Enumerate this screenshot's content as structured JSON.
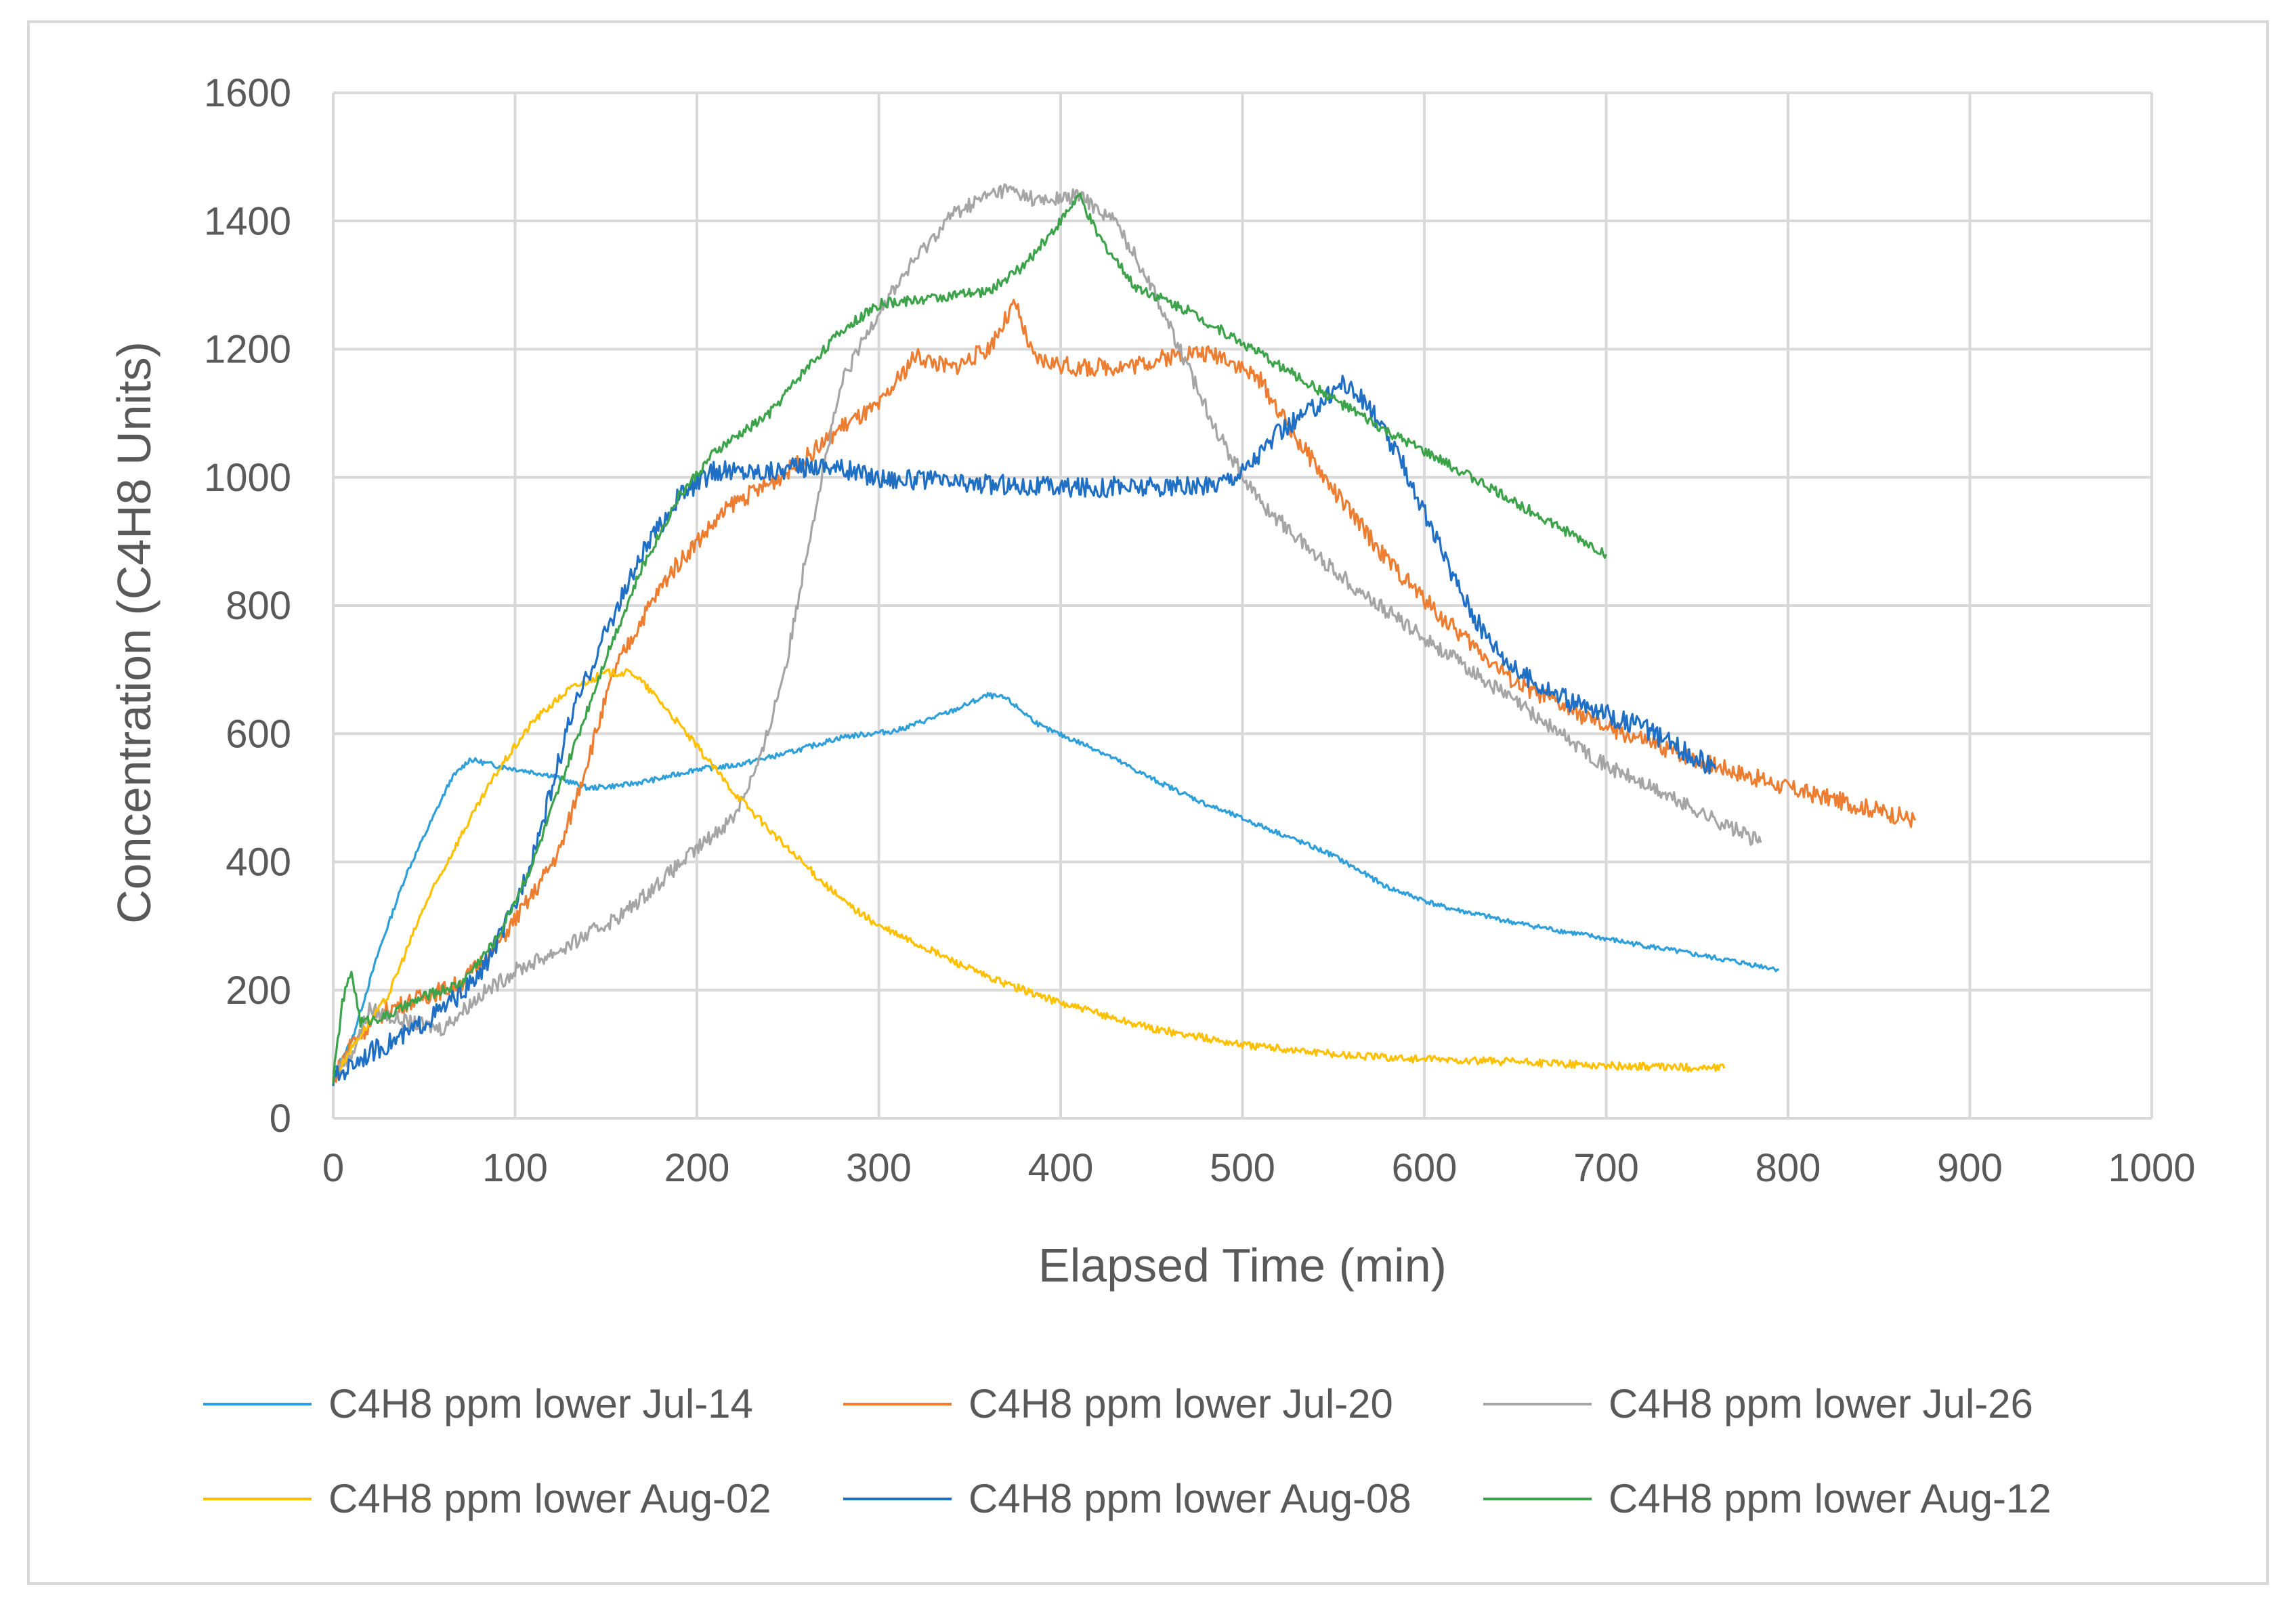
{
  "chart_data": {
    "type": "line",
    "title": "",
    "xlabel": "Elapsed Time (min)",
    "ylabel": "Concentration (C4H8 Units)",
    "xlim": [
      0,
      1000
    ],
    "ylim": [
      0,
      1600
    ],
    "xticks": [
      "0",
      "100",
      "200",
      "300",
      "400",
      "500",
      "600",
      "700",
      "800",
      "900",
      "1000"
    ],
    "yticks": [
      "0",
      "200",
      "400",
      "600",
      "800",
      "1000",
      "1200",
      "1400",
      "1600"
    ],
    "grid": true,
    "legend_position": "bottom",
    "series": [
      {
        "name": "C4H8 ppm lower Jul-14",
        "color": "#2E9FD8",
        "noise": 4,
        "points": [
          [
            0,
            70
          ],
          [
            10,
            120
          ],
          [
            25,
            260
          ],
          [
            40,
            380
          ],
          [
            55,
            470
          ],
          [
            65,
            530
          ],
          [
            75,
            560
          ],
          [
            90,
            550
          ],
          [
            100,
            545
          ],
          [
            120,
            535
          ],
          [
            140,
            515
          ],
          [
            160,
            520
          ],
          [
            180,
            530
          ],
          [
            200,
            545
          ],
          [
            220,
            550
          ],
          [
            250,
            570
          ],
          [
            280,
            595
          ],
          [
            310,
            605
          ],
          [
            340,
            635
          ],
          [
            360,
            660
          ],
          [
            370,
            655
          ],
          [
            390,
            610
          ],
          [
            420,
            575
          ],
          [
            450,
            530
          ],
          [
            480,
            490
          ],
          [
            520,
            445
          ],
          [
            550,
            410
          ],
          [
            580,
            360
          ],
          [
            610,
            330
          ],
          [
            650,
            305
          ],
          [
            700,
            280
          ],
          [
            750,
            255
          ],
          [
            790,
            235
          ],
          [
            795,
            232
          ]
        ]
      },
      {
        "name": "C4H8 ppm lower Jul-20",
        "color": "#ED7D31",
        "noise": 14,
        "points": [
          [
            0,
            60
          ],
          [
            10,
            120
          ],
          [
            30,
            170
          ],
          [
            50,
            190
          ],
          [
            70,
            210
          ],
          [
            90,
            270
          ],
          [
            110,
            350
          ],
          [
            125,
            420
          ],
          [
            140,
            560
          ],
          [
            155,
            700
          ],
          [
            170,
            780
          ],
          [
            185,
            850
          ],
          [
            200,
            900
          ],
          [
            220,
            960
          ],
          [
            240,
            990
          ],
          [
            260,
            1030
          ],
          [
            280,
            1080
          ],
          [
            300,
            1110
          ],
          [
            320,
            1190
          ],
          [
            340,
            1170
          ],
          [
            360,
            1200
          ],
          [
            375,
            1270
          ],
          [
            385,
            1185
          ],
          [
            410,
            1170
          ],
          [
            440,
            1175
          ],
          [
            470,
            1195
          ],
          [
            490,
            1190
          ],
          [
            510,
            1150
          ],
          [
            530,
            1060
          ],
          [
            550,
            980
          ],
          [
            580,
            870
          ],
          [
            610,
            780
          ],
          [
            650,
            680
          ],
          [
            700,
            610
          ],
          [
            750,
            560
          ],
          [
            800,
            515
          ],
          [
            850,
            480
          ],
          [
            870,
            465
          ]
        ]
      },
      {
        "name": "C4H8 ppm lower Jul-26",
        "color": "#A5A5A5",
        "noise": 12,
        "points": [
          [
            0,
            70
          ],
          [
            10,
            100
          ],
          [
            20,
            170
          ],
          [
            40,
            150
          ],
          [
            60,
            140
          ],
          [
            80,
            190
          ],
          [
            100,
            230
          ],
          [
            130,
            270
          ],
          [
            160,
            320
          ],
          [
            180,
            370
          ],
          [
            200,
            420
          ],
          [
            220,
            470
          ],
          [
            235,
            560
          ],
          [
            250,
            720
          ],
          [
            260,
            880
          ],
          [
            270,
            1020
          ],
          [
            280,
            1150
          ],
          [
            300,
            1260
          ],
          [
            320,
            1340
          ],
          [
            340,
            1410
          ],
          [
            360,
            1440
          ],
          [
            370,
            1450
          ],
          [
            390,
            1430
          ],
          [
            410,
            1440
          ],
          [
            430,
            1400
          ],
          [
            450,
            1300
          ],
          [
            470,
            1170
          ],
          [
            490,
            1050
          ],
          [
            510,
            960
          ],
          [
            540,
            880
          ],
          [
            570,
            810
          ],
          [
            600,
            750
          ],
          [
            650,
            650
          ],
          [
            700,
            550
          ],
          [
            750,
            480
          ],
          [
            785,
            430
          ]
        ]
      },
      {
        "name": "C4H8 ppm lower Aug-02",
        "color": "#FFC000",
        "noise": 6,
        "points": [
          [
            0,
            60
          ],
          [
            10,
            110
          ],
          [
            30,
            190
          ],
          [
            50,
            330
          ],
          [
            70,
            440
          ],
          [
            90,
            540
          ],
          [
            110,
            620
          ],
          [
            130,
            670
          ],
          [
            150,
            695
          ],
          [
            165,
            695
          ],
          [
            180,
            650
          ],
          [
            200,
            580
          ],
          [
            220,
            510
          ],
          [
            250,
            420
          ],
          [
            280,
            340
          ],
          [
            300,
            300
          ],
          [
            330,
            260
          ],
          [
            360,
            220
          ],
          [
            400,
            180
          ],
          [
            450,
            140
          ],
          [
            500,
            115
          ],
          [
            550,
            100
          ],
          [
            600,
            92
          ],
          [
            650,
            88
          ],
          [
            700,
            82
          ],
          [
            765,
            78
          ]
        ]
      },
      {
        "name": "C4H8 ppm lower Aug-08",
        "color": "#1F6FC5",
        "noise": 16,
        "points": [
          [
            0,
            60
          ],
          [
            15,
            95
          ],
          [
            40,
            130
          ],
          [
            60,
            170
          ],
          [
            80,
            220
          ],
          [
            100,
            330
          ],
          [
            115,
            460
          ],
          [
            130,
            620
          ],
          [
            150,
            760
          ],
          [
            170,
            880
          ],
          [
            190,
            970
          ],
          [
            210,
            1010
          ],
          [
            240,
            1010
          ],
          [
            270,
            1020
          ],
          [
            300,
            1000
          ],
          [
            350,
            990
          ],
          [
            400,
            985
          ],
          [
            450,
            985
          ],
          [
            480,
            985
          ],
          [
            500,
            1010
          ],
          [
            520,
            1070
          ],
          [
            540,
            1110
          ],
          [
            555,
            1150
          ],
          [
            570,
            1110
          ],
          [
            590,
            1010
          ],
          [
            610,
            880
          ],
          [
            630,
            770
          ],
          [
            650,
            700
          ],
          [
            680,
            650
          ],
          [
            720,
            610
          ],
          [
            760,
            545
          ]
        ]
      },
      {
        "name": "C4H8 ppm lower Aug-12",
        "color": "#3CA34A",
        "noise": 8,
        "points": [
          [
            0,
            60
          ],
          [
            5,
            180
          ],
          [
            10,
            230
          ],
          [
            15,
            150
          ],
          [
            30,
            160
          ],
          [
            50,
            190
          ],
          [
            70,
            210
          ],
          [
            90,
            280
          ],
          [
            110,
            400
          ],
          [
            130,
            560
          ],
          [
            150,
            720
          ],
          [
            170,
            860
          ],
          [
            190,
            970
          ],
          [
            210,
            1040
          ],
          [
            240,
            1100
          ],
          [
            260,
            1170
          ],
          [
            280,
            1230
          ],
          [
            300,
            1270
          ],
          [
            330,
            1280
          ],
          [
            360,
            1290
          ],
          [
            380,
            1330
          ],
          [
            400,
            1400
          ],
          [
            410,
            1440
          ],
          [
            420,
            1380
          ],
          [
            440,
            1300
          ],
          [
            470,
            1260
          ],
          [
            500,
            1210
          ],
          [
            540,
            1140
          ],
          [
            580,
            1070
          ],
          [
            620,
            1010
          ],
          [
            660,
            945
          ],
          [
            700,
            880
          ]
        ]
      }
    ]
  }
}
